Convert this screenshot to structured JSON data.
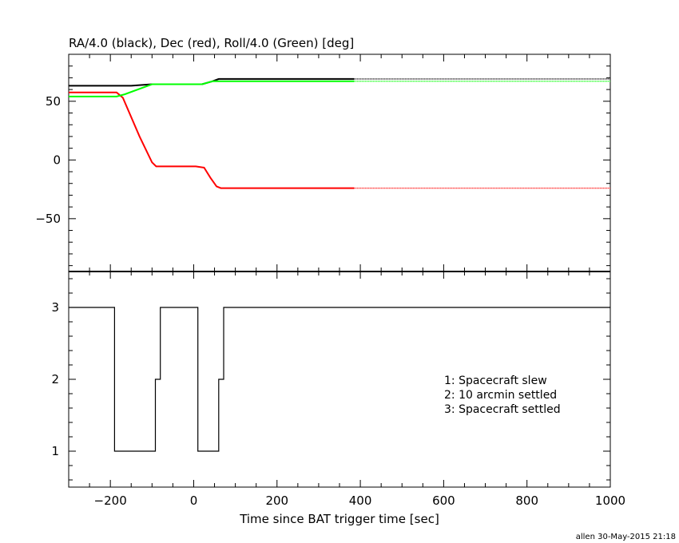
{
  "chart_data": [
    {
      "type": "line",
      "title": "RA/4.0 (black), Dec (red), Roll/4.0 (Green) [deg]",
      "xlim": [
        -300,
        1000
      ],
      "ylim": [
        -95,
        90
      ],
      "yticks": [
        50,
        0,
        -50
      ],
      "ytick_labels": [
        "50",
        "0",
        "−50"
      ],
      "grid": false,
      "series": [
        {
          "color": "#000000",
          "solid_until": 385,
          "points": [
            [
              -300,
              63.2
            ],
            [
              -150,
              63.2
            ],
            [
              -100,
              64.5
            ],
            [
              20,
              64.5
            ],
            [
              45,
              67
            ],
            [
              60,
              69
            ],
            [
              385,
              69
            ],
            [
              1000,
              69
            ]
          ]
        },
        {
          "color": "#ff0000",
          "solid_until": 385,
          "points": [
            [
              -300,
              57.5
            ],
            [
              -185,
              57.5
            ],
            [
              -170,
              53
            ],
            [
              -130,
              20
            ],
            [
              -100,
              -2
            ],
            [
              -90,
              -5.5
            ],
            [
              5,
              -5.5
            ],
            [
              25,
              -6.5
            ],
            [
              40,
              -15
            ],
            [
              55,
              -22.5
            ],
            [
              65,
              -24
            ],
            [
              385,
              -24
            ],
            [
              1000,
              -24
            ]
          ]
        },
        {
          "color": "#00ff00",
          "solid_until": 385,
          "points": [
            [
              -300,
              54
            ],
            [
              -185,
              54
            ],
            [
              -165,
              56
            ],
            [
              -100,
              64.5
            ],
            [
              20,
              64.5
            ],
            [
              45,
              67
            ],
            [
              60,
              67
            ],
            [
              385,
              67
            ],
            [
              1000,
              67
            ]
          ]
        }
      ]
    },
    {
      "type": "line",
      "xlabel": "Time since BAT trigger time [sec]",
      "xlim": [
        -300,
        1000
      ],
      "ylim": [
        0.5,
        3.5
      ],
      "xticks": [
        -200,
        0,
        200,
        400,
        600,
        800,
        1000
      ],
      "xtick_labels": [
        "−200",
        "0",
        "200",
        "400",
        "600",
        "800",
        "1000"
      ],
      "yticks": [
        1,
        2,
        3
      ],
      "ytick_labels": [
        "1",
        "2",
        "3"
      ],
      "legend": [
        "1: Spacecraft slew",
        "2: 10 arcmin settled",
        "3: Spacecraft settled"
      ],
      "legend_placement": "right",
      "series": [
        {
          "color": "#000000",
          "step": true,
          "points": [
            [
              -300,
              3
            ],
            [
              -190,
              3
            ],
            [
              -190,
              1
            ],
            [
              -92,
              1
            ],
            [
              -92,
              2
            ],
            [
              -80,
              2
            ],
            [
              -80,
              3
            ],
            [
              10,
              3
            ],
            [
              10,
              1
            ],
            [
              60,
              1
            ],
            [
              60,
              2
            ],
            [
              72,
              2
            ],
            [
              72,
              3
            ],
            [
              1000,
              3
            ]
          ]
        }
      ]
    }
  ],
  "footer": "allen 30-May-2015 21:18"
}
